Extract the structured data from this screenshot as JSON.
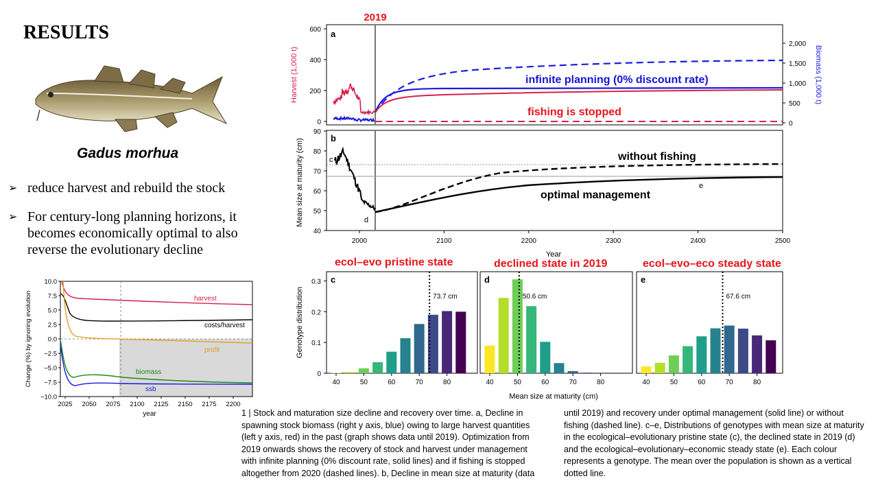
{
  "slide": {
    "title": "RESULTS",
    "species": "Gadus morhua",
    "bullets": [
      "reduce harvest and rebuild the stock",
      "For century-long planning horizons, it becomes economically optimal to also reverse the evolutionary decline"
    ]
  },
  "colors": {
    "harvest": "#d6204a",
    "biomass": "#1a1ae0",
    "annotation_red": "#e8131b",
    "annotation_blue": "#1414d8"
  },
  "panel_a": {
    "letter": "a",
    "marker_label": "2019",
    "ylabel_left": "Harvest (1,000 t)",
    "ylabel_right": "Biomass (1,000 t)",
    "yticks_left": [
      "0",
      "200",
      "400",
      "600"
    ],
    "yticks_right": [
      "0",
      "500",
      "1,000",
      "1,500",
      "2,000"
    ],
    "annotation_infinite": "infinite planning (0% discount rate)",
    "annotation_stopped": "fishing is stopped"
  },
  "panel_b": {
    "letter": "b",
    "ylabel": "Mean size at maturity (cm)",
    "yticks": [
      "40",
      "50",
      "60",
      "70",
      "80",
      "90"
    ],
    "xticks": [
      "2000",
      "2100",
      "2200",
      "2300",
      "2400",
      "2500"
    ],
    "xlabel": "Year",
    "annotation_nofish": "without fishing",
    "annotation_optimal": "optimal management",
    "point_c": "c",
    "point_d": "d",
    "point_e": "e"
  },
  "histograms": {
    "ylabel": "Genotype distribution",
    "xlabel": "Mean size at maturity (cm)",
    "yticks": [
      "0",
      "0.1",
      "0.2",
      "0.3"
    ],
    "xticks": [
      "40",
      "50",
      "60",
      "70",
      "80"
    ],
    "panels": [
      {
        "letter": "c",
        "title": "ecol–evo pristine state",
        "mean_label": "73.7 cm",
        "mean": 73.7,
        "values": [
          0.001,
          0.004,
          0.016,
          0.036,
          0.07,
          0.114,
          0.16,
          0.19,
          0.202,
          0.2
        ]
      },
      {
        "letter": "d",
        "title": "declined state in 2019",
        "mean_label": "50.6 cm",
        "mean": 50.6,
        "values": [
          0.09,
          0.245,
          0.305,
          0.218,
          0.102,
          0.033,
          0.007,
          0.002,
          0.0,
          0.0
        ]
      },
      {
        "letter": "e",
        "title": "ecol–evo–eco steady state",
        "mean_label": "67.6 cm",
        "mean": 67.6,
        "values": [
          0.022,
          0.034,
          0.058,
          0.088,
          0.12,
          0.146,
          0.155,
          0.145,
          0.123,
          0.107
        ]
      }
    ]
  },
  "inset": {
    "ylabel": "Change (%) by ignoring evolution",
    "xlabel": "year",
    "yticks": [
      "10.0",
      "7.5",
      "5.0",
      "2.5",
      "0.0",
      "−2.5",
      "−5.0",
      "−7.5",
      "−10.0"
    ],
    "xticks": [
      "2025",
      "2050",
      "2075",
      "2100",
      "2125",
      "2150",
      "2175",
      "2200"
    ],
    "labels": {
      "harvest": "harvest",
      "costs": "costs/harvest",
      "profit": "profit",
      "biomass": "biomass",
      "ssb": "ssb"
    }
  },
  "caption": {
    "left": "1 | Stock and maturation size decline and recovery over time. a, Decline in spawning stock biomass (right y axis, blue) owing to large harvest quantities (left y axis, red) in the past (graph shows data until 2019). Optimization from 2019 onwards shows the recovery of stock and harvest under management with infinite planning (0% discount rate, solid lines) and if fishing is stopped altogether from 2020 (dashed lines). b, Decline in mean size at maturity (data",
    "right": "until 2019) and recovery under optimal management (solid line) or without fishing (dashed line). c–e, Distributions of genotypes with mean size at maturity in the ecological–evolutionary pristine state (c), the declined state in 2019 (d) and the ecological–evolutionary–economic steady state (e). Each colour represents a genotype. The mean over the population is shown as a vertical dotted line."
  }
}
